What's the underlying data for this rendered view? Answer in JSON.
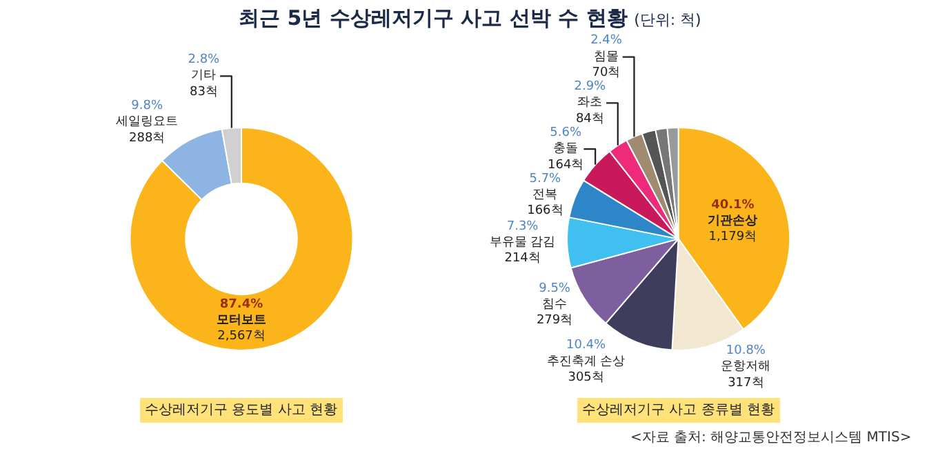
{
  "chart_data": [
    {
      "type": "donut",
      "title": "최근 5년 수상레저기구 사고 선박 수 현황",
      "xlabel": "수상레저기구 용도별 사고 현황",
      "categories": [
        "모터보트",
        "세일링요트",
        "기타"
      ],
      "values": [
        87.4,
        9.8,
        2.8
      ],
      "value_labels": [
        "87.4%\n2,567척",
        "9.8%\n288척",
        "2.8%\n83척"
      ],
      "colors": [
        "#fbb41a",
        "#8db4e2",
        "#d0d0d0"
      ]
    },
    {
      "type": "pie",
      "subtitle": "(단위: 척)",
      "xlabel": "수상레저기구 사고 종류별 현황",
      "categories": [
        "기관손상",
        "운항저해",
        "추진축계 손상",
        "침수",
        "부유물 감김",
        "전복",
        "충돌",
        "좌초",
        "침몰",
        null,
        null,
        null
      ],
      "values": [
        40.1,
        10.8,
        10.4,
        9.5,
        7.3,
        5.7,
        5.6,
        2.9,
        2.4,
        2.0,
        1.7,
        1.6
      ],
      "value_labels": [
        "40.1%\n1,179척",
        "10.8%\n317척",
        "10.4%\n305척",
        "9.5%\n279척",
        "7.3%\n214척",
        "5.7%\n166척",
        "5.6%\n164척",
        "2.9%\n84척",
        "2.4%\n70척",
        null,
        null,
        null
      ],
      "colors": [
        "#fbb41a",
        "#f2e8d2",
        "#3e3d5c",
        "#7d5fa0",
        "#3fc0f0",
        "#2e86c8",
        "#c8195a",
        "#ee2a7b",
        "#a08a70",
        "#555555",
        "#777777",
        "#999999"
      ],
      "annotations": [
        "<자료 출처: 해양교통안전정보시스템 MTIS>"
      ]
    }
  ]
}
